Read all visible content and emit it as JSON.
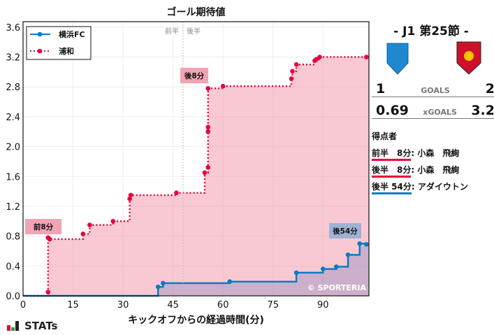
{
  "chart_data": {
    "type": "line",
    "title": "ゴール期待値",
    "xlabel": "キックオフからの経過時間(分)",
    "ylabel": "",
    "xlim": [
      0,
      104
    ],
    "ylim": [
      0,
      3.65
    ],
    "xticks": [
      0,
      15,
      30,
      45,
      60,
      75,
      90
    ],
    "yticks": [
      0.0,
      0.4,
      0.8,
      1.2,
      1.6,
      2.0,
      2.4,
      2.8,
      3.2,
      3.6
    ],
    "grid": true,
    "legend_position": "upper left",
    "halftime_marker": {
      "x": 48,
      "labels": [
        "前半",
        "後半"
      ]
    },
    "series": [
      {
        "name": "横浜FC",
        "color": "#0a7cc1",
        "style": "solid-step",
        "points": [
          [
            0,
            0
          ],
          [
            40.5,
            0.12
          ],
          [
            42,
            0.17
          ],
          [
            62,
            0.19
          ],
          [
            82,
            0.31
          ],
          [
            90,
            0.36
          ],
          [
            94,
            0.39
          ],
          [
            97.5,
            0.55
          ],
          [
            101,
            0.7
          ],
          [
            103,
            0.69
          ]
        ]
      },
      {
        "name": "浦和",
        "color": "#e8003a",
        "style": "dotted-step",
        "points": [
          [
            0,
            0
          ],
          [
            7.5,
            0.05
          ],
          [
            7.5,
            0.78
          ],
          [
            8,
            0.76
          ],
          [
            18,
            0.83
          ],
          [
            20,
            0.95
          ],
          [
            27,
            1.0
          ],
          [
            32,
            1.3
          ],
          [
            32.3,
            1.35
          ],
          [
            46,
            1.38
          ],
          [
            54.5,
            1.65
          ],
          [
            55.5,
            1.72
          ],
          [
            55.5,
            2.2
          ],
          [
            55.5,
            2.26
          ],
          [
            55.5,
            2.78
          ],
          [
            60,
            2.81
          ],
          [
            80.5,
            2.91
          ],
          [
            80.8,
            3.01
          ],
          [
            82,
            3.1
          ],
          [
            87.5,
            3.15
          ],
          [
            88,
            3.17
          ],
          [
            89,
            3.2
          ],
          [
            103,
            3.2
          ]
        ]
      }
    ],
    "annotations": [
      {
        "text": "前8分",
        "x": 8,
        "y": 0.76,
        "team": "浦和"
      },
      {
        "text": "後8分",
        "x": 55.5,
        "y": 2.78,
        "team": "浦和"
      },
      {
        "text": "後54分",
        "x": 101,
        "y": 0.7,
        "team": "横浜FC"
      }
    ],
    "watermark": "© SPORTERIA"
  },
  "side": {
    "round": "- J1 第25節 -",
    "home_score": "1",
    "away_score": "2",
    "goals_label": "GOALS",
    "home_xg": "0.69",
    "away_xg": "3.2",
    "xg_label": "xGOALS",
    "scorers_title": "得点者",
    "scorers": [
      {
        "time": "前半　8分",
        "name": ": 小森　飛絢",
        "color": "#e8003a"
      },
      {
        "time": "後半　8分",
        "name": ": 小森　飛絢",
        "color": "#e8003a"
      },
      {
        "time": "後半 54分",
        "name": ": アダイウトン",
        "color": "#0a7cc1"
      }
    ]
  },
  "footer": {
    "brand": "STATs"
  }
}
